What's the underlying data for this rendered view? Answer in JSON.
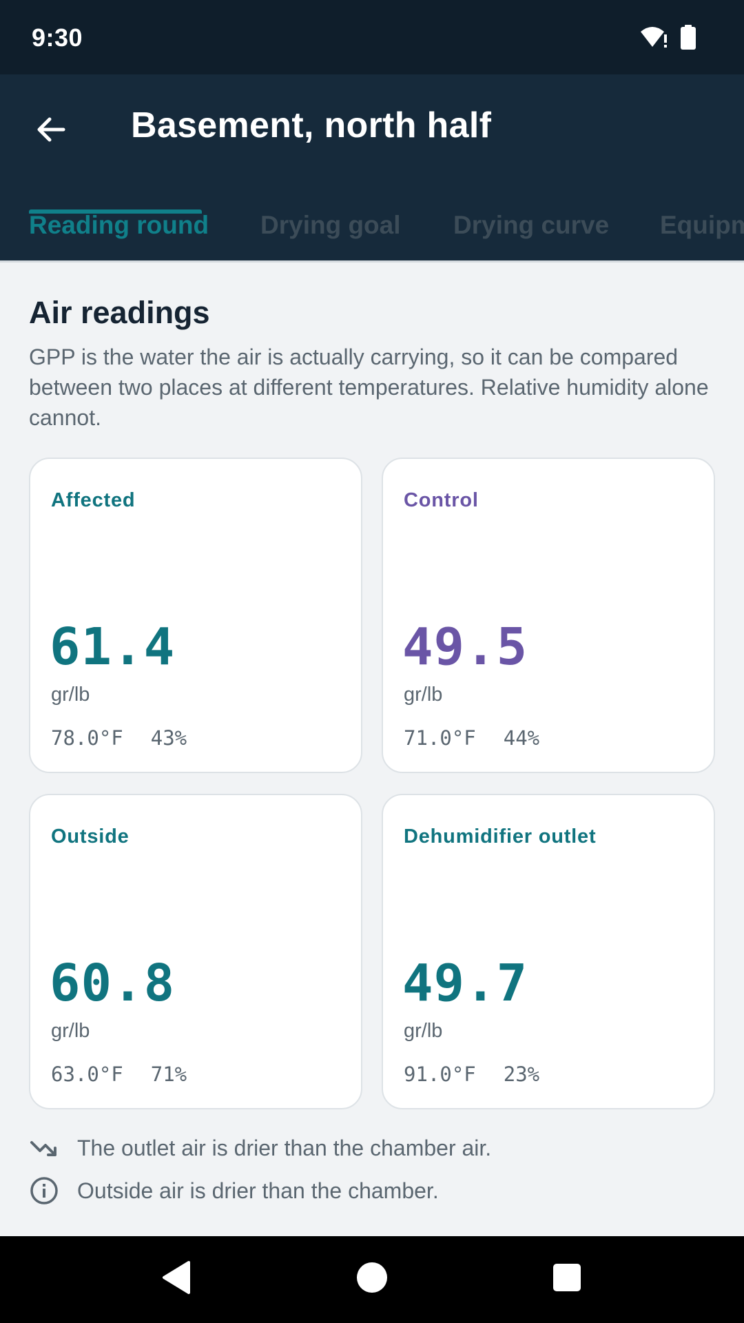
{
  "status_bar": {
    "time": "9:30",
    "icons": [
      "wifi-alert-icon",
      "battery-icon"
    ]
  },
  "app_bar": {
    "title": "Basement, north half",
    "back_icon": "arrow-left-icon"
  },
  "tabs": [
    {
      "label": "Reading round",
      "active": true
    },
    {
      "label": "Drying goal",
      "active": false
    },
    {
      "label": "Drying curve",
      "active": false
    },
    {
      "label": "Equipment",
      "active": false
    }
  ],
  "section": {
    "title": "Air readings",
    "description": "GPP is the water the air is actually carrying, so it can be compared between two places at different temperatures. Relative humidity alone cannot."
  },
  "cards": [
    {
      "label": "Affected",
      "value": "61.4",
      "unit": "gr/lb",
      "temp": "78.0°F",
      "rh": "43%",
      "color": "#10747f"
    },
    {
      "label": "Control",
      "value": "49.5",
      "unit": "gr/lb",
      "temp": "71.0°F",
      "rh": "44%",
      "color": "#6a55a6"
    },
    {
      "label": "Outside",
      "value": "60.8",
      "unit": "gr/lb",
      "temp": "63.0°F",
      "rh": "71%",
      "color": "#10747f"
    },
    {
      "label": "Dehumidifier outlet",
      "value": "49.7",
      "unit": "gr/lb",
      "temp": "91.0°F",
      "rh": "23%",
      "color": "#10747f"
    }
  ],
  "notes": [
    {
      "icon": "trending-down-icon",
      "text": "The outlet air is drier than the chamber air."
    },
    {
      "icon": "info-icon",
      "text": "Outside air is drier than the chamber."
    }
  ],
  "nav_bar": {
    "icons": [
      "back-triangle-icon",
      "home-circle-icon",
      "recents-square-icon"
    ]
  },
  "colors": {
    "accent": "#10808a",
    "app_bar": "#162a3b",
    "status_bar": "#0f1e2b",
    "control": "#6a55a6"
  }
}
